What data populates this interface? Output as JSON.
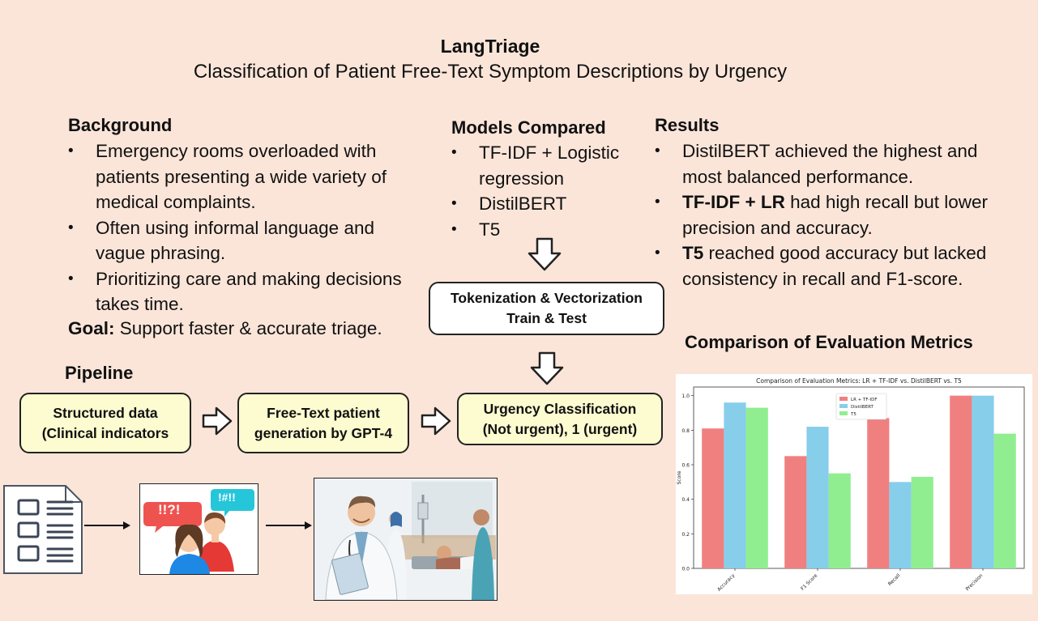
{
  "header": {
    "title": "LangTriage",
    "subtitle": "Classification of Patient Free-Text Symptom Descriptions by Urgency"
  },
  "background": {
    "heading": "Background",
    "bullets": [
      "Emergency rooms overloaded with patients presenting a wide variety of medical complaints.",
      "Often using informal language and vague phrasing.",
      "Prioritizing care and making decisions takes time."
    ],
    "goal_label": "Goal:",
    "goal_text": " Support faster & accurate triage."
  },
  "models": {
    "heading": "Models Compared",
    "items": [
      "TF-IDF + Logistic regression",
      "DistilBERT",
      "T5"
    ],
    "process_box_line1": "Tokenization & Vectorization",
    "process_box_line2": "Train & Test"
  },
  "results": {
    "heading": "Results",
    "bullets": [
      {
        "bold": "",
        "text": "DistilBERT achieved the highest and most balanced performance."
      },
      {
        "bold": "TF-IDF + LR",
        "text": " had high recall but lower precision and accuracy."
      },
      {
        "bold": "T5",
        "text": " reached good accuracy but lacked consistency in recall and F1-score."
      }
    ]
  },
  "pipeline": {
    "heading": "Pipeline",
    "step1_line1": "Structured data",
    "step1_line2": "(Clinical indicators",
    "step2_line1": "Free-Text patient",
    "step2_line2": "generation by GPT-4",
    "step3_line1": "Urgency Classification",
    "step3_line2": "(Not urgent), 1 (urgent)"
  },
  "illustrations": {
    "speech_left": "!!?!",
    "speech_right": "!#!!"
  },
  "chart_section": {
    "heading": "Comparison of Evaluation Metrics"
  },
  "chart_data": {
    "type": "bar",
    "title": "Comparison of Evaluation Metrics: LR + TF-IDF vs. DistilBERT vs. T5",
    "xlabel": "",
    "ylabel": "Score",
    "categories": [
      "Accuracy",
      "F1 Score",
      "Recall",
      "Precision"
    ],
    "series": [
      {
        "name": "LR + TF-IDF",
        "values": [
          0.81,
          0.65,
          0.87,
          1.0
        ],
        "color": "#f08080"
      },
      {
        "name": "DistilBERT",
        "values": [
          0.96,
          0.82,
          0.5,
          1.0
        ],
        "color": "#87ceeb"
      },
      {
        "name": "T5",
        "values": [
          0.93,
          0.55,
          0.53,
          0.78
        ],
        "color": "#90ee90"
      }
    ],
    "ylim": [
      0,
      1.05
    ],
    "yticks": [
      "0.0",
      "0.2",
      "0.4",
      "0.6",
      "0.8",
      "1.0"
    ],
    "grid": false,
    "legend_position": "top-center"
  }
}
